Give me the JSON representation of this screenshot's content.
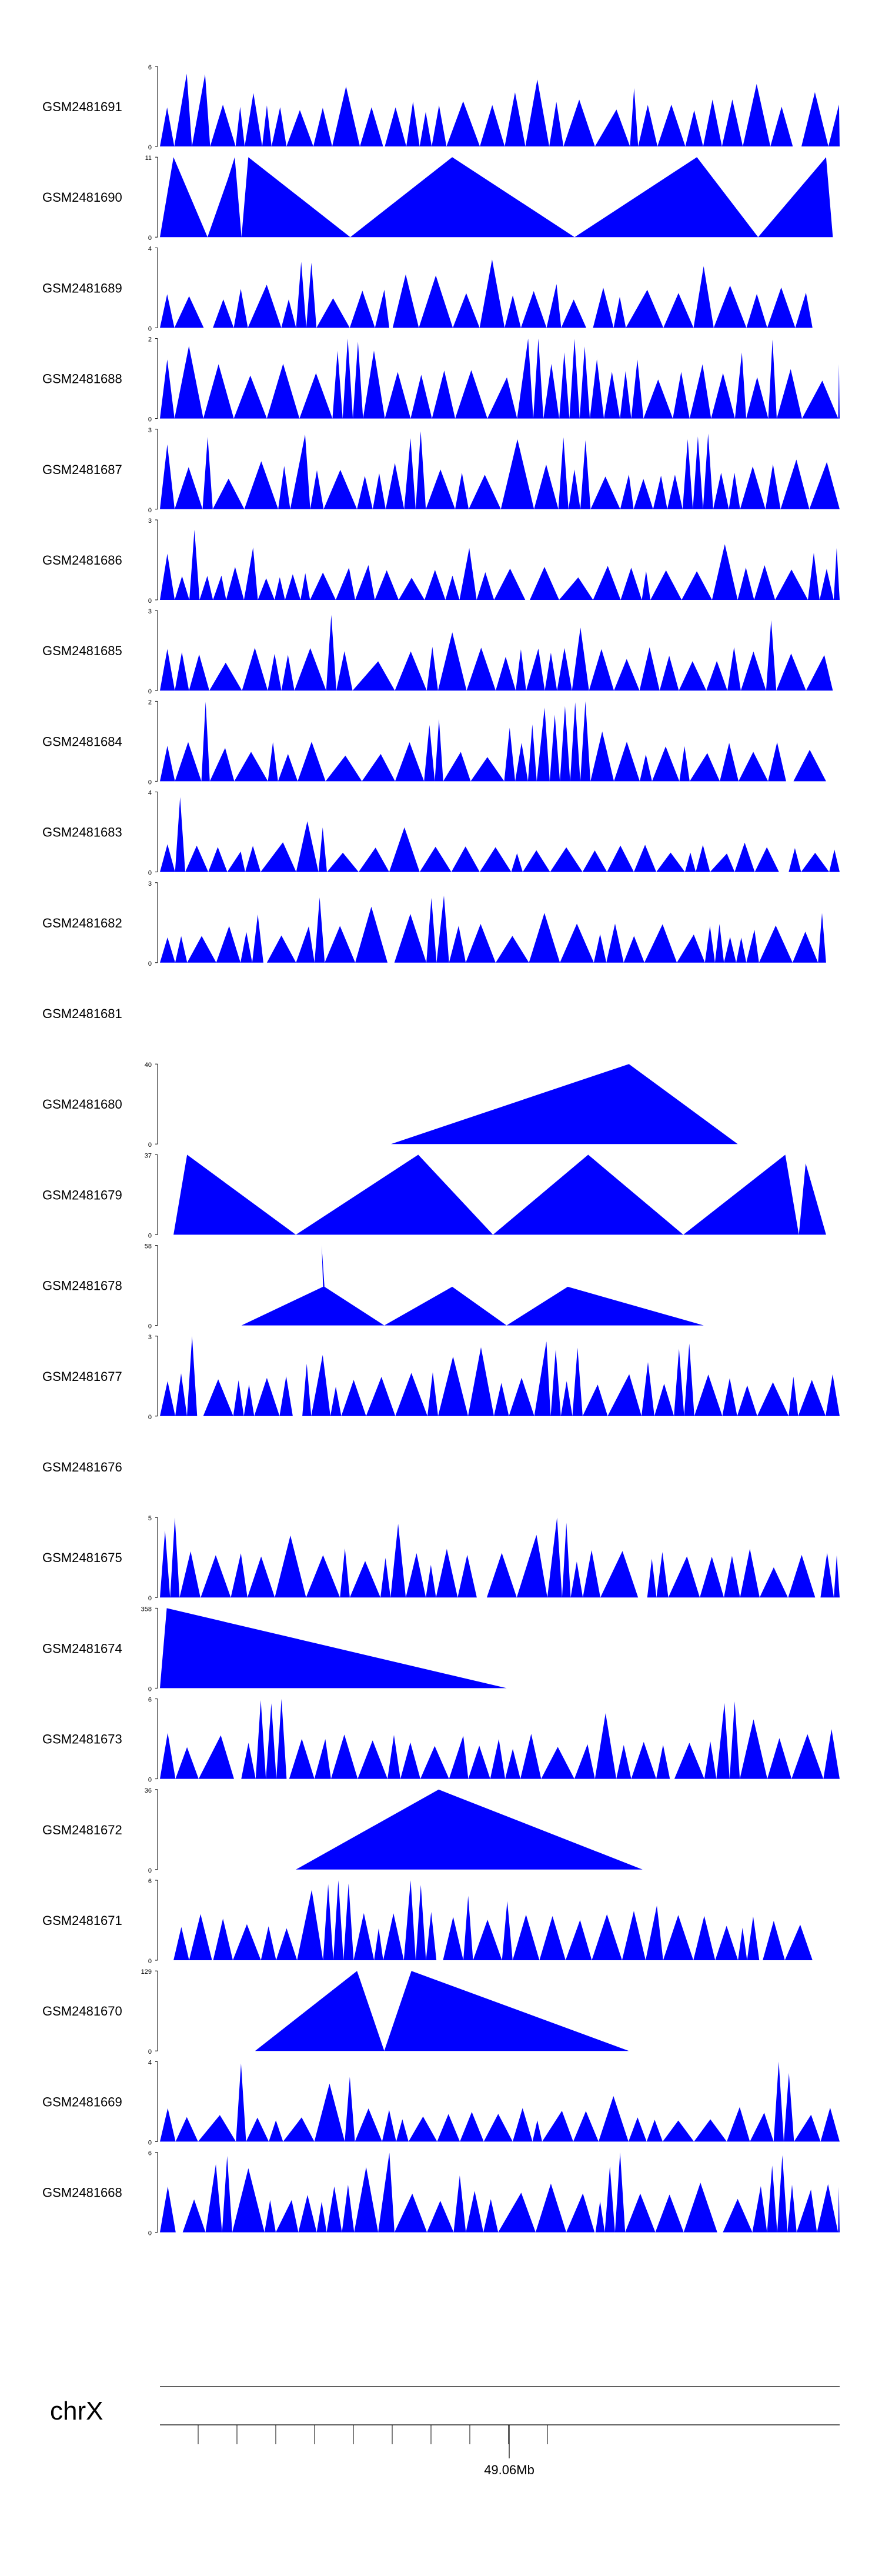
{
  "colors": {
    "fill": "#0000ff",
    "axis": "#000000",
    "text": "#000000"
  },
  "chart_data": {
    "type": "area",
    "title": "",
    "chromosome": "chrX",
    "ruler_label": "49.06Mb",
    "x_domain": [
      0,
      100
    ],
    "tracks": [
      {
        "name": "GSM2481691",
        "ymax": "6",
        "ymin": "0",
        "shape": "spiky",
        "peak": 6,
        "baseline": 0.55,
        "seed": 11,
        "start": 0,
        "end": 100,
        "tall_at": [
          7
        ]
      },
      {
        "name": "GSM2481690",
        "ymax": "11",
        "ymin": "0",
        "shape": "points",
        "peak": 11,
        "points": [
          [
            0,
            0
          ],
          [
            2,
            11
          ],
          [
            7,
            0
          ],
          [
            10,
            8
          ],
          [
            11,
            11
          ],
          [
            12,
            0
          ],
          [
            13,
            11
          ],
          [
            28,
            0
          ],
          [
            43,
            11
          ],
          [
            61,
            0
          ],
          [
            79,
            11
          ],
          [
            88,
            0
          ],
          [
            98,
            11
          ],
          [
            99,
            0
          ]
        ]
      },
      {
        "name": "GSM2481689",
        "ymax": "4",
        "ymin": "0",
        "shape": "spiky",
        "peak": 4,
        "baseline": 0.45,
        "seed": 23,
        "start": 0,
        "end": 96,
        "tall_at": [
          22
        ]
      },
      {
        "name": "GSM2481688",
        "ymax": "2",
        "ymin": "0",
        "shape": "spiky",
        "peak": 2,
        "baseline": 0.55,
        "seed": 31,
        "start": 0,
        "end": 100,
        "tall_at": [
          27,
          29,
          56,
          63,
          85,
          86
        ]
      },
      {
        "name": "GSM2481687",
        "ymax": "3",
        "ymin": "0",
        "shape": "spiky",
        "peak": 3,
        "baseline": 0.5,
        "seed": 47,
        "start": 0,
        "end": 100,
        "tall_at": [
          7,
          22,
          38,
          63,
          79,
          80
        ]
      },
      {
        "name": "GSM2481686",
        "ymax": "3",
        "ymin": "0",
        "shape": "spiky",
        "peak": 3,
        "baseline": 0.35,
        "seed": 53,
        "start": 0,
        "end": 100,
        "tall_at": [
          6
        ]
      },
      {
        "name": "GSM2481685",
        "ymax": "3",
        "ymin": "0",
        "shape": "spiky",
        "peak": 3,
        "baseline": 0.45,
        "seed": 61,
        "start": 0,
        "end": 99,
        "tall_at": [
          25,
          90
        ]
      },
      {
        "name": "GSM2481684",
        "ymax": "2",
        "ymin": "0",
        "shape": "spiky",
        "peak": 2,
        "baseline": 0.4,
        "seed": 71,
        "start": 0,
        "end": 98,
        "tall_at": [
          7,
          58,
          59,
          61,
          62
        ]
      },
      {
        "name": "GSM2481683",
        "ymax": "4",
        "ymin": "0",
        "shape": "spiky",
        "peak": 4,
        "baseline": 0.3,
        "seed": 83,
        "start": 0,
        "end": 100,
        "tall_at": [
          3
        ]
      },
      {
        "name": "GSM2481682",
        "ymax": "3",
        "ymin": "0",
        "shape": "spiky",
        "peak": 3,
        "baseline": 0.4,
        "seed": 97,
        "start": 0,
        "end": 98,
        "tall_at": [
          24,
          40,
          41,
          42
        ]
      },
      {
        "name": "GSM2481681",
        "ymax": "",
        "ymin": "",
        "shape": "empty"
      },
      {
        "name": "GSM2481680",
        "ymax": "40",
        "ymin": "0",
        "shape": "points",
        "peak": 40,
        "points": [
          [
            34,
            0
          ],
          [
            69,
            40
          ],
          [
            85,
            0
          ]
        ]
      },
      {
        "name": "GSM2481679",
        "ymax": "37",
        "ymin": "0",
        "shape": "points",
        "peak": 37,
        "points": [
          [
            2,
            0
          ],
          [
            4,
            37
          ],
          [
            20,
            0
          ],
          [
            38,
            37
          ],
          [
            49,
            0
          ],
          [
            63,
            37
          ],
          [
            77,
            0
          ],
          [
            92,
            37
          ],
          [
            94,
            0
          ],
          [
            95,
            33
          ],
          [
            98,
            0
          ]
        ]
      },
      {
        "name": "GSM2481678",
        "ymax": "58",
        "ymin": "0",
        "shape": "points",
        "peak": 58,
        "points": [
          [
            12,
            0
          ],
          [
            24,
            28
          ],
          [
            23.8,
            58
          ],
          [
            24.2,
            28
          ],
          [
            33,
            0
          ],
          [
            43,
            28
          ],
          [
            51,
            0
          ],
          [
            60,
            28
          ],
          [
            80,
            0
          ]
        ]
      },
      {
        "name": "GSM2481677",
        "ymax": "3",
        "ymin": "0",
        "shape": "spiky",
        "peak": 3,
        "baseline": 0.45,
        "seed": 101,
        "start": 0,
        "end": 100,
        "tall_at": [
          6,
          57,
          58,
          62,
          78
        ]
      },
      {
        "name": "GSM2481676",
        "ymax": "",
        "ymin": "",
        "shape": "empty"
      },
      {
        "name": "GSM2481675",
        "ymax": "5",
        "ymin": "0",
        "shape": "spiky",
        "peak": 5,
        "baseline": 0.5,
        "seed": 113,
        "start": 0,
        "end": 100,
        "tall_at": [
          0,
          2,
          58,
          60,
          65
        ]
      },
      {
        "name": "GSM2481674",
        "ymax": "358",
        "ymin": "0",
        "shape": "points",
        "peak": 358,
        "points": [
          [
            0,
            0
          ],
          [
            1,
            358
          ],
          [
            51,
            0
          ]
        ]
      },
      {
        "name": "GSM2481673",
        "ymax": "6",
        "ymin": "0",
        "shape": "spiky",
        "peak": 6,
        "baseline": 0.5,
        "seed": 127,
        "start": 0,
        "end": 100,
        "tall_at": [
          17,
          18,
          85
        ]
      },
      {
        "name": "GSM2481672",
        "ymax": "36",
        "ymin": "0",
        "shape": "points",
        "peak": 36,
        "points": [
          [
            20,
            0
          ],
          [
            41,
            36
          ],
          [
            71,
            0
          ]
        ]
      },
      {
        "name": "GSM2481671",
        "ymax": "6",
        "ymin": "0",
        "shape": "spiky",
        "peak": 6,
        "baseline": 0.5,
        "seed": 131,
        "start": 2,
        "end": 96,
        "tall_at": [
          28,
          38
        ]
      },
      {
        "name": "GSM2481670",
        "ymax": "129",
        "ymin": "0",
        "shape": "points",
        "peak": 129,
        "points": [
          [
            14,
            0
          ],
          [
            29,
            129
          ],
          [
            33,
            0
          ],
          [
            37,
            129
          ],
          [
            69,
            0
          ]
        ]
      },
      {
        "name": "GSM2481669",
        "ymax": "4",
        "ymin": "0",
        "shape": "spiky",
        "peak": 4,
        "baseline": 0.35,
        "seed": 139,
        "start": 0,
        "end": 100,
        "tall_at": [
          12,
          28,
          57,
          93
        ]
      },
      {
        "name": "GSM2481668",
        "ymax": "6",
        "ymin": "0",
        "shape": "spiky",
        "peak": 6,
        "baseline": 0.5,
        "seed": 149,
        "start": 0,
        "end": 100,
        "tall_at": [
          10,
          34,
          67,
          91
        ]
      }
    ]
  }
}
